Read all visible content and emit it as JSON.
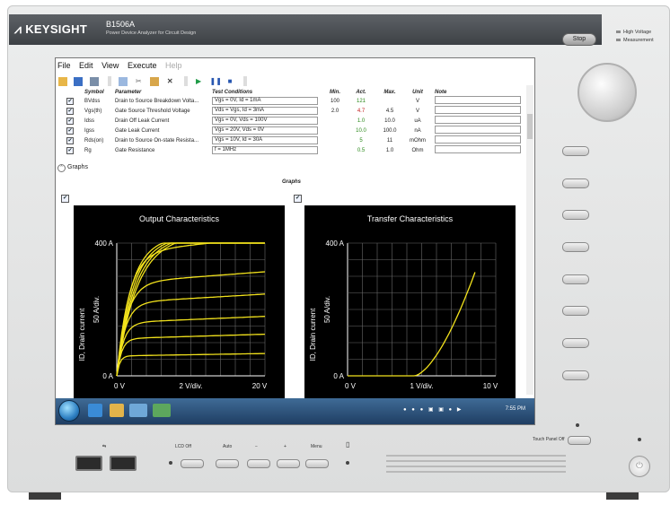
{
  "brand": {
    "name": "KEYSIGHT",
    "model": "B1506A",
    "subtitle": "Power Device Analyzer for Circuit Design"
  },
  "front_panel": {
    "stop_label": "Stop",
    "hv_line1": "High Voltage",
    "hv_line2": "Measurement",
    "touch_panel_off": "Touch Panel Off",
    "lcd_off": "LCD Off",
    "auto": "Auto",
    "minus": "−",
    "plus": "+",
    "menu": "Menu"
  },
  "menu": {
    "file": "File",
    "edit": "Edit",
    "view": "View",
    "execute": "Execute",
    "help": "Help"
  },
  "table": {
    "headers": {
      "symbol": "Symbol",
      "parameter": "Parameter",
      "conditions": "Test Conditions",
      "min": "Min.",
      "act": "Act.",
      "max": "Max.",
      "unit": "Unit",
      "note": "Note"
    },
    "rows": [
      {
        "symbol": "BVdss",
        "parameter": "Drain to Source Breakdown Volta...",
        "conditions": "Vgs = 0V, Id = 1mA",
        "min": "100",
        "act": "121",
        "max": "",
        "unit": "V",
        "act_status": "green"
      },
      {
        "symbol": "Vgs(th)",
        "parameter": "Gate Source Threshold Voltage",
        "conditions": "Vds = Vgs, Id = 3mA",
        "min": "2.0",
        "act": "4.7",
        "max": "4.5",
        "unit": "V",
        "act_status": "red"
      },
      {
        "symbol": "Idss",
        "parameter": "Drain Off Leak Current",
        "conditions": "Vgs = 0V, Vds = 100V",
        "min": "",
        "act": "1.0",
        "max": "10.0",
        "unit": "uA",
        "act_status": "green"
      },
      {
        "symbol": "Igss",
        "parameter": "Gate Leak Current",
        "conditions": "Vgs = 20V, Vds = 0V",
        "min": "",
        "act": "10.0",
        "max": "100.0",
        "unit": "nA",
        "act_status": "green"
      },
      {
        "symbol": "Rds(on)",
        "parameter": "Drain to Source On-state Resista...",
        "conditions": "Vgs = 10V, Id = 30A",
        "min": "",
        "act": "5",
        "max": "11",
        "unit": "mOhm",
        "act_status": "green"
      },
      {
        "symbol": "Rg",
        "parameter": "Gate Resistance",
        "conditions": "f = 1MHz",
        "min": "",
        "act": "0.5",
        "max": "1.0",
        "unit": "Ohm",
        "act_status": "green"
      }
    ]
  },
  "graphs": {
    "toggle_label": "Graphs",
    "section_title": "Graphs",
    "output": {
      "title": "Output Characteristics",
      "ytop": "400 A",
      "ybottom": "0 A",
      "ylabel": "ID, Drain current",
      "ydiv": "50 A/div.",
      "xleft": "0 V",
      "xmid": "2 V/div.",
      "xright": "20 V"
    },
    "transfer": {
      "title": "Transfer Characteristics",
      "ytop": "400 A",
      "ybottom": "0 A",
      "ylabel": "ID, Drain current",
      "ydiv": "50 A/div.",
      "xleft": "0 V",
      "xmid": "1 V/div.",
      "xright": "10 V"
    }
  },
  "taskbar": {
    "clock": "7:55 PM"
  },
  "colors": {
    "trace": "#f2e21c",
    "act_green": "#2c8a1c",
    "act_red": "#c32020"
  },
  "icons": [
    "keysight-logo-icon",
    "open-icon",
    "save-icon",
    "print-icon",
    "copy-icon",
    "cut-icon",
    "paste-icon",
    "delete-icon",
    "run-icon",
    "pause-icon",
    "stop-icon",
    "windows-start-icon",
    "ie-icon",
    "folder-icon",
    "usb-icon",
    "power-icon"
  ]
}
